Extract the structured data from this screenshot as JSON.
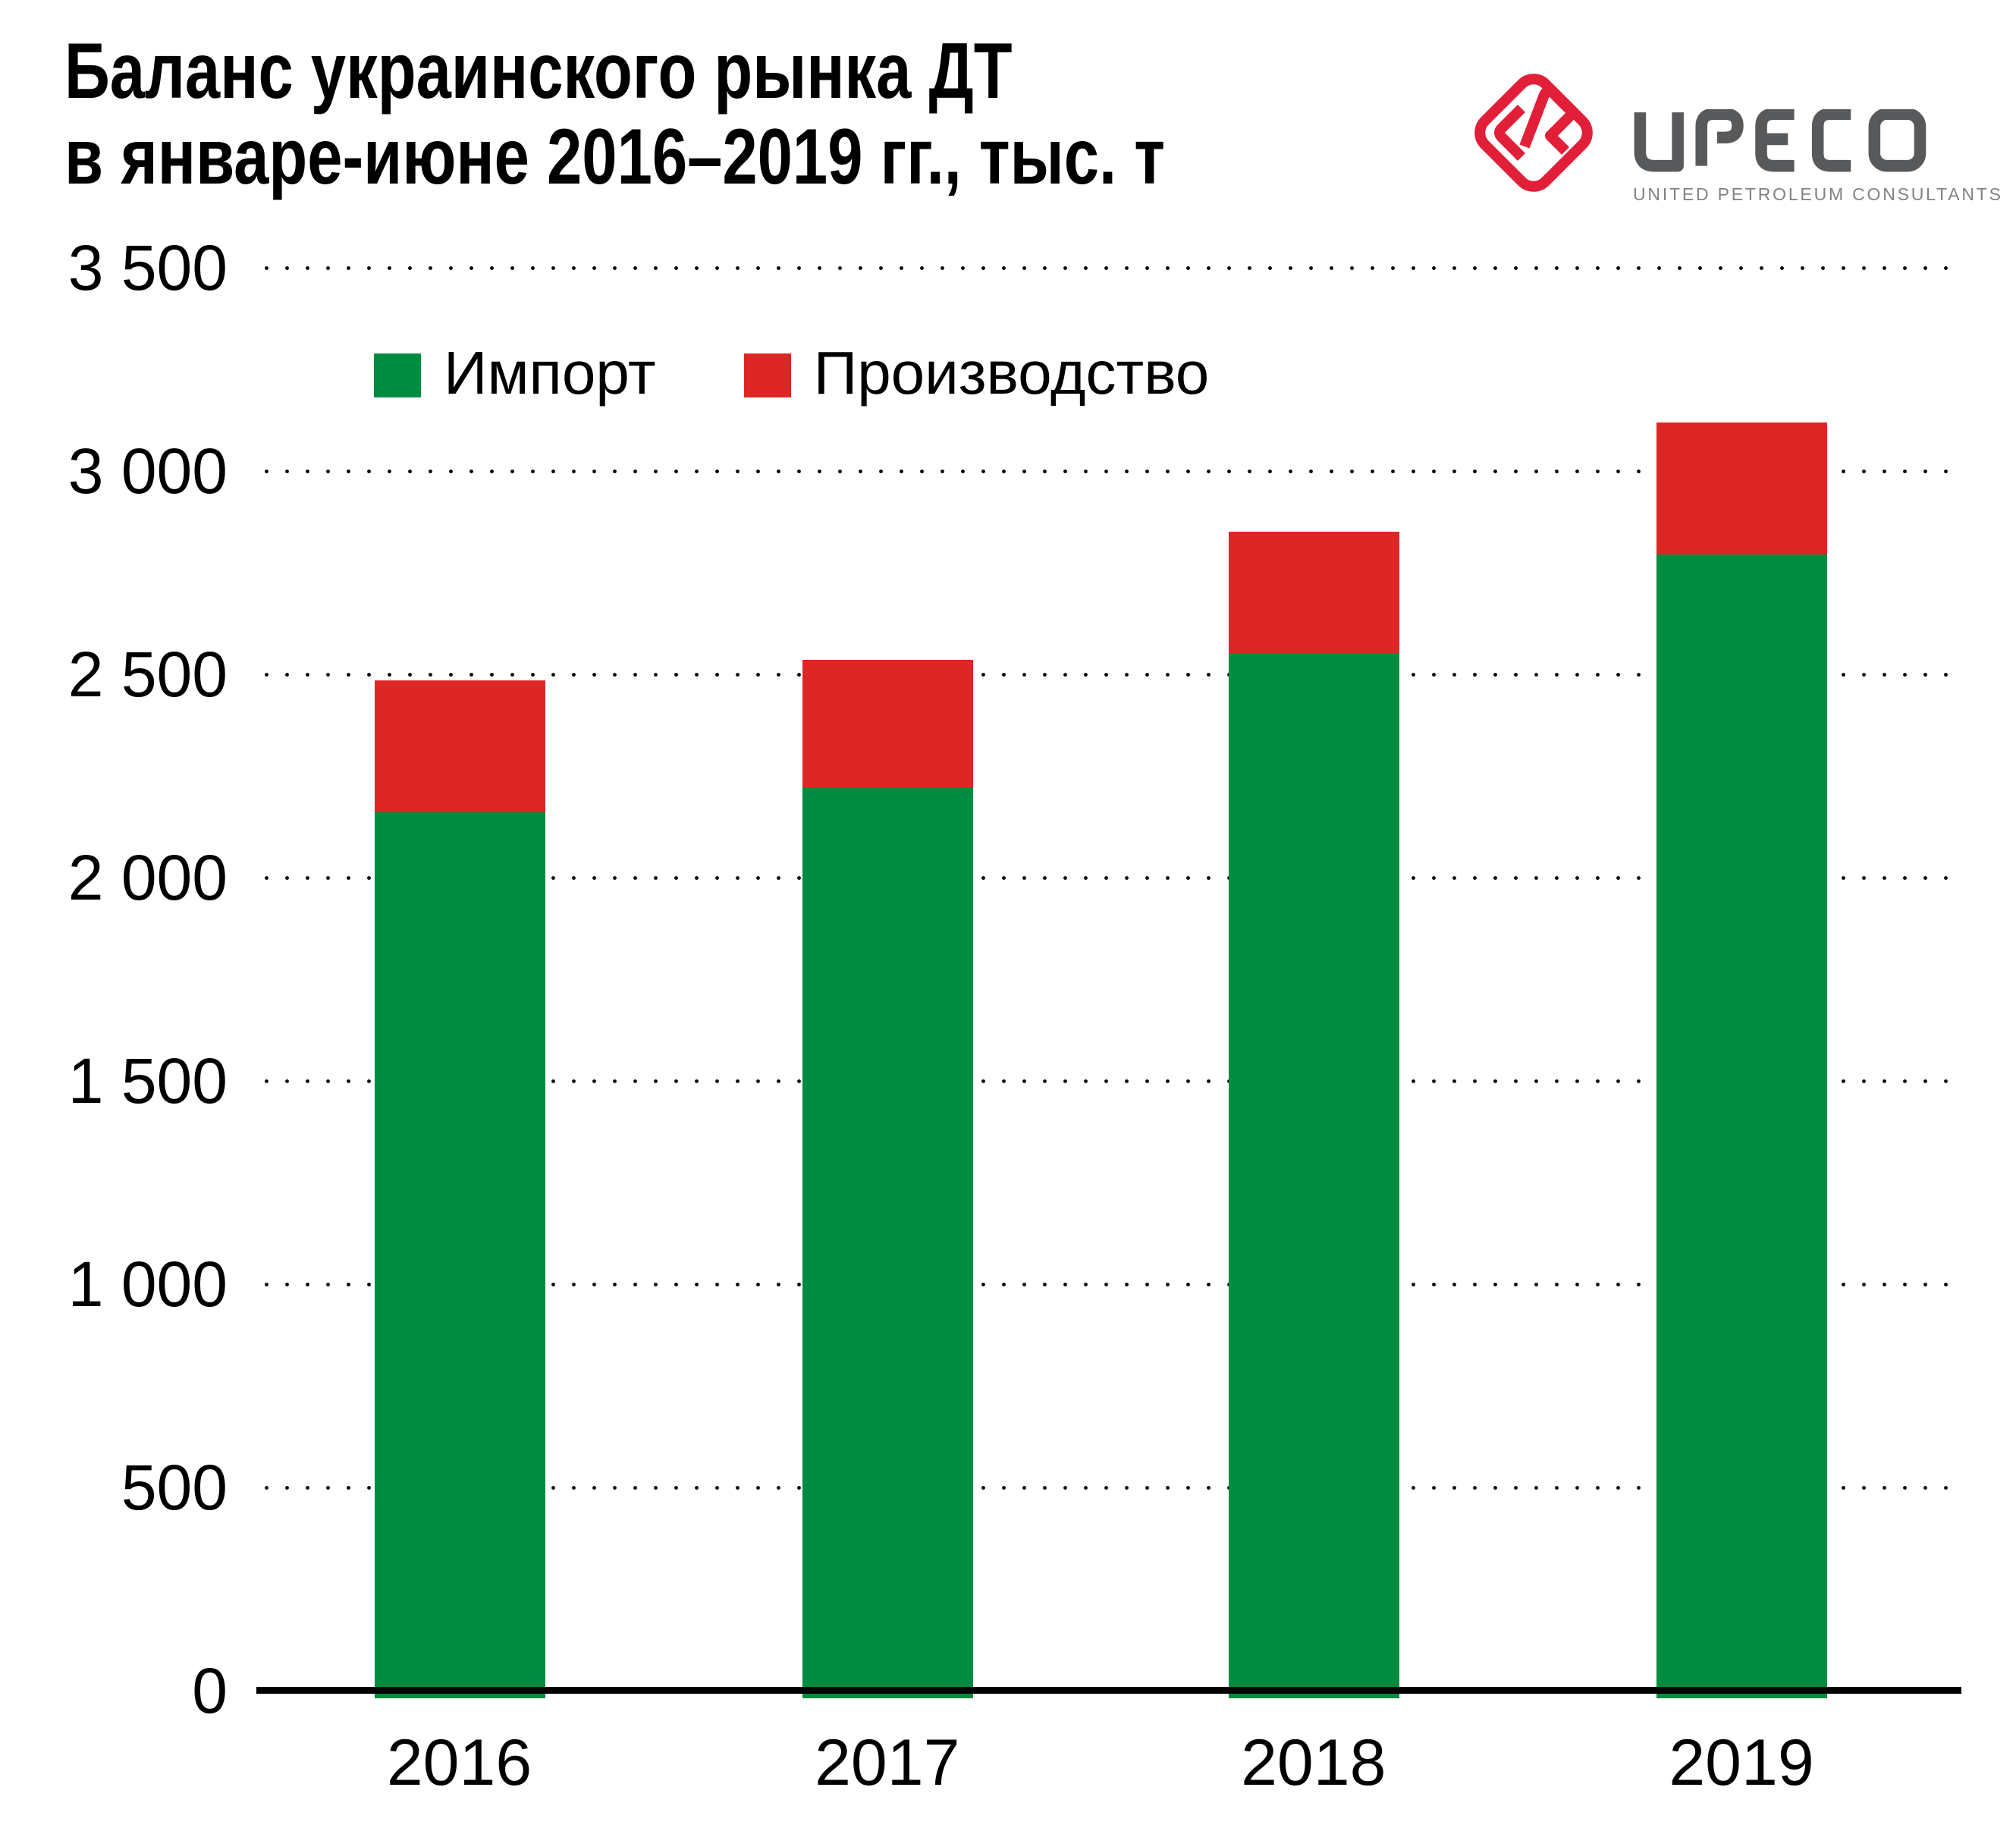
{
  "title": {
    "line1": "Баланс украинского рынка ДТ",
    "line2": "в январе-июне 2016–2019 гг., тыс. т"
  },
  "logo": {
    "name": "UPECO",
    "subtitle": "UNITED PETROLEUM CONSULTANTS",
    "brand_red": "#E21F38",
    "text_dark": "#58595B",
    "text_light": "#808285"
  },
  "chart_data": {
    "type": "bar",
    "stacked": true,
    "title": "Баланс украинского рынка ДТ в январе-июне 2016–2019 гг., тыс. т",
    "unit": "тыс. т",
    "categories": [
      "2016",
      "2017",
      "2018",
      "2019"
    ],
    "series": [
      {
        "name": "Импорт",
        "color": "#008C40",
        "values": [
          2160,
          2220,
          2550,
          2795
        ]
      },
      {
        "name": "Производство",
        "color": "#DD2726",
        "values": [
          325,
          315,
          300,
          325
        ]
      }
    ],
    "totals": [
      2485,
      2535,
      2850,
      3120
    ],
    "ylim": [
      0,
      3500
    ],
    "ytick_step": 500,
    "yticks": [
      {
        "value": 0,
        "label": "0"
      },
      {
        "value": 500,
        "label": "500"
      },
      {
        "value": 1000,
        "label": "1 000"
      },
      {
        "value": 1500,
        "label": "1 500"
      },
      {
        "value": 2000,
        "label": "2 000"
      },
      {
        "value": 2500,
        "label": "2 500"
      },
      {
        "value": 3000,
        "label": "3 000"
      },
      {
        "value": 3500,
        "label": "3 500"
      }
    ],
    "grid": "dotted-horizontal",
    "legend_position": "top-left-inside"
  }
}
